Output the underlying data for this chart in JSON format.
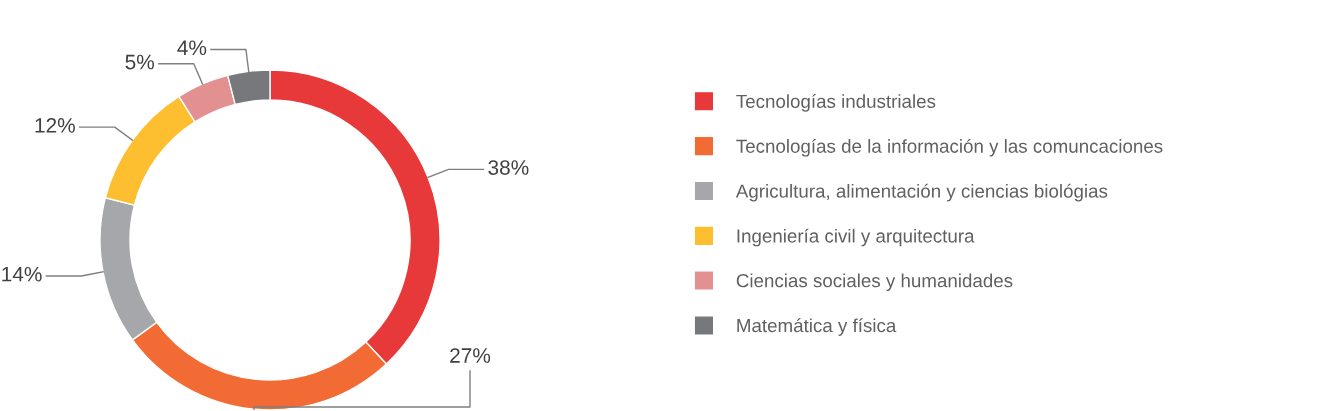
{
  "chart_data": {
    "type": "donut",
    "categories": [
      "Tecnologías industriales",
      "Tecnologías de la información y las comuncaciones",
      "Agricultura, alimentación y ciencias biológias",
      "Ingeniería civil y arquitectura",
      "Ciencias sociales y humanidades",
      "Matemática y física"
    ],
    "values": [
      38,
      27,
      14,
      12,
      5,
      4
    ],
    "value_labels": [
      "38%",
      "27%",
      "14%",
      "12%",
      "5%",
      "4%"
    ],
    "colors": [
      "#e8393a",
      "#f26b34",
      "#a6a7aa",
      "#fdbf2f",
      "#e39090",
      "#77787b"
    ],
    "legend": "right"
  }
}
